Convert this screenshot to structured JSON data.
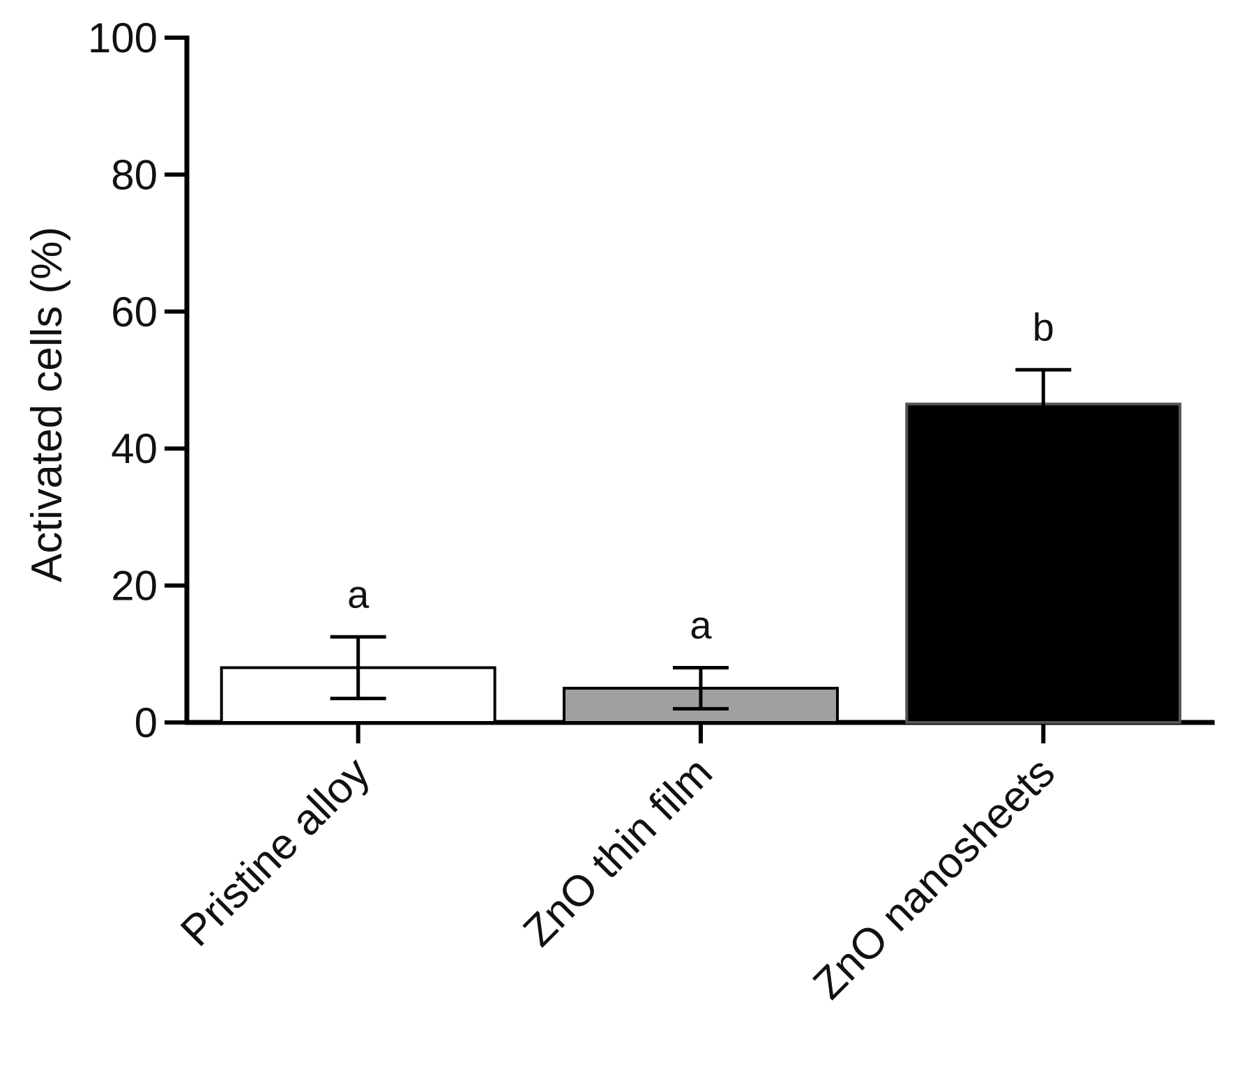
{
  "chart_data": {
    "type": "bar",
    "title": "",
    "xlabel": "",
    "ylabel": "Activated cells (%)",
    "ylim": [
      0,
      100
    ],
    "yticks": [
      0,
      20,
      40,
      60,
      80,
      100
    ],
    "grid": false,
    "categories": [
      "Pristine alloy",
      "ZnO thin film",
      "ZnO nanosheets"
    ],
    "values": [
      8,
      5,
      46.5
    ],
    "errors": [
      4.5,
      3,
      5
    ],
    "significance_letters": [
      "a",
      "a",
      "b"
    ],
    "bar_colors": [
      "#ffffff",
      "#a0a0a0",
      "#000000"
    ]
  }
}
